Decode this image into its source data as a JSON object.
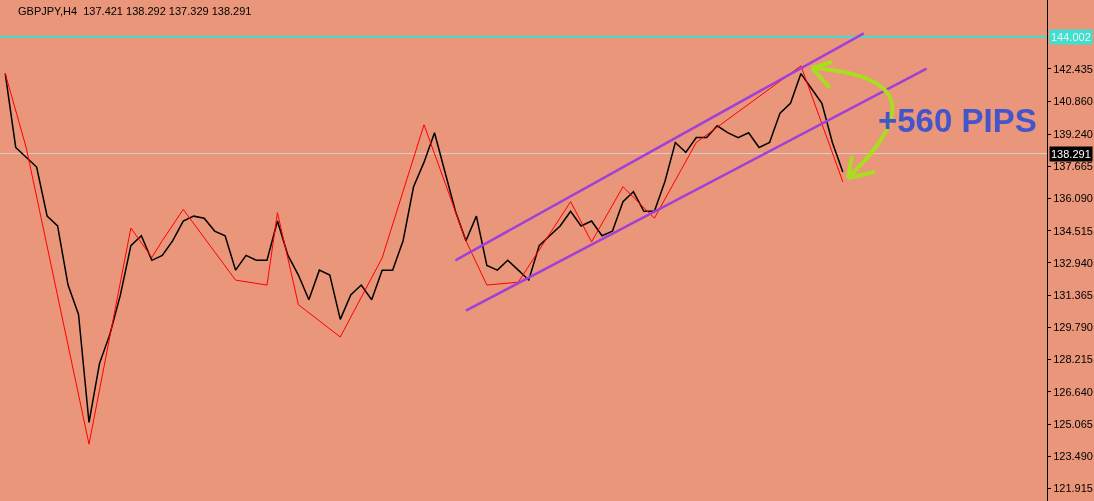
{
  "chart_data": {
    "type": "line",
    "title": "GBPJPY,H4  137.421 138.292 137.329 138.291",
    "annotations": [
      "+560 PIPS"
    ],
    "categories": [
      null,
      null,
      null,
      null,
      null,
      null,
      null,
      null,
      null,
      null,
      null,
      null,
      null,
      null,
      null,
      null,
      null,
      null,
      null,
      null,
      null,
      null,
      null,
      null,
      null,
      null,
      null,
      null,
      null,
      null,
      null,
      null,
      null,
      null,
      null,
      null,
      null,
      null,
      null,
      null,
      null,
      null,
      null,
      null,
      null,
      null,
      null,
      null,
      null,
      null,
      null,
      null,
      null,
      null,
      null,
      null,
      null,
      null,
      null,
      null,
      null,
      null,
      null,
      null,
      null,
      null,
      null,
      null,
      null,
      null,
      null,
      null,
      null,
      null,
      null,
      null,
      null,
      null,
      null,
      null,
      null,
      null,
      null,
      null,
      null,
      null,
      null,
      null,
      null,
      null,
      null,
      null,
      null,
      null,
      null,
      null,
      null,
      null,
      null,
      null
    ],
    "series": [
      {
        "color": "#000000",
        "values": [
          142.2,
          138.59,
          138.11,
          137.63,
          135.23,
          134.75,
          131.86,
          130.42,
          125.14,
          128.02,
          129.46,
          131.38,
          133.79,
          134.27,
          133.07,
          133.31,
          134.03,
          134.99,
          135.23,
          135.13,
          134.5,
          134.27,
          132.59,
          133.31,
          133.07,
          133.07,
          134.99,
          133.31,
          132.35,
          131.14,
          132.59,
          132.35,
          130.18,
          131.38,
          131.86,
          131.14,
          132.59,
          132.59,
          134.03,
          136.67,
          137.87,
          139.31,
          137.39,
          135.47,
          134.03,
          135.23,
          132.82,
          132.59,
          133.07,
          132.59,
          132.11,
          133.79,
          134.27,
          134.75,
          135.47,
          134.75,
          134.99,
          134.27,
          134.5,
          135.94,
          136.42,
          135.47,
          135.47,
          136.91,
          138.83,
          138.35,
          139.07,
          139.07,
          139.65,
          139.31,
          139.07,
          139.31,
          138.59,
          138.83,
          140.27,
          140.75,
          142.2,
          141.47,
          140.75,
          138.83,
          137.39,
          null,
          null,
          null,
          null,
          null,
          null,
          null,
          null,
          null,
          null,
          null,
          null,
          null,
          null,
          null,
          null,
          null,
          null,
          null
        ]
      },
      {
        "color": "#ff0000",
        "values": [
          142.2,
          null,
          138.59,
          null,
          null,
          null,
          null,
          null,
          124.08,
          null,
          null,
          null,
          134.65,
          null,
          133.21,
          134.03,
          null,
          135.56,
          null,
          null,
          null,
          null,
          132.1,
          null,
          null,
          131.86,
          135.4,
          null,
          130.9,
          null,
          null,
          null,
          129.32,
          null,
          null,
          null,
          133.19,
          null,
          null,
          null,
          139.7,
          null,
          null,
          null,
          134.03,
          null,
          131.86,
          null,
          null,
          132.0,
          null,
          null,
          null,
          null,
          135.94,
          null,
          133.97,
          null,
          null,
          136.67,
          null,
          null,
          135.13,
          null,
          null,
          null,
          138.83,
          null,
          null,
          null,
          null,
          null,
          null,
          null,
          null,
          null,
          142.58,
          null,
          null,
          null,
          136.91,
          null,
          null,
          null,
          null,
          null,
          null,
          null,
          null,
          null,
          null,
          null,
          null,
          null,
          null,
          null,
          null,
          null,
          null,
          null
        ]
      },
      {
        "color": "#a040d8",
        "values": [
          null,
          null,
          null,
          null,
          null,
          null,
          null,
          null,
          null,
          null,
          null,
          null,
          null,
          null,
          null,
          null,
          null,
          null,
          null,
          null,
          null,
          null,
          null,
          null,
          null,
          null,
          null,
          null,
          null,
          null,
          null,
          null,
          null,
          null,
          null,
          null,
          null,
          null,
          null,
          null,
          null,
          null,
          null,
          133.07,
          null,
          null,
          null,
          null,
          null,
          null,
          null,
          null,
          null,
          null,
          null,
          null,
          null,
          null,
          null,
          null,
          null,
          null,
          null,
          null,
          null,
          null,
          null,
          null,
          null,
          null,
          null,
          null,
          null,
          null,
          null,
          null,
          null,
          null,
          null,
          null,
          null,
          null,
          144.17,
          null,
          null,
          null,
          null,
          null,
          null,
          null,
          null,
          null,
          null,
          null,
          null,
          null,
          null,
          null,
          null,
          null
        ]
      },
      {
        "color": "#a040d8",
        "values": [
          null,
          null,
          null,
          null,
          null,
          null,
          null,
          null,
          null,
          null,
          null,
          null,
          null,
          null,
          null,
          null,
          null,
          null,
          null,
          null,
          null,
          null,
          null,
          null,
          null,
          null,
          null,
          null,
          null,
          null,
          null,
          null,
          null,
          null,
          null,
          null,
          null,
          null,
          null,
          null,
          null,
          null,
          null,
          null,
          130.61,
          null,
          null,
          null,
          null,
          null,
          null,
          null,
          null,
          null,
          null,
          null,
          null,
          null,
          null,
          null,
          null,
          null,
          null,
          null,
          null,
          null,
          null,
          null,
          null,
          null,
          null,
          null,
          null,
          null,
          null,
          null,
          null,
          null,
          null,
          null,
          null,
          null,
          null,
          null,
          null,
          null,
          null,
          null,
          142.44,
          null,
          null,
          null,
          null,
          null,
          null,
          null,
          null,
          null,
          null,
          null
        ]
      }
    ],
    "ylim": [
      121.3,
      145.8
    ],
    "yticks": [
      121.915,
      {
        "value": 123.49,
        "label": "123.490"
      },
      125.065,
      {
        "value": 126.64,
        "label": "126.640"
      },
      128.215,
      {
        "value": 129.79,
        "label": "129.790"
      },
      131.365,
      {
        "value": 132.94,
        "label": "132.940"
      },
      134.515,
      {
        "value": 136.09,
        "label": "136.090"
      },
      137.665,
      {
        "value": 139.24,
        "label": "139.240"
      },
      {
        "value": 140.86,
        "label": "140.860"
      },
      142.435
    ],
    "ref_lines": [
      {
        "axis": "y",
        "value": 144.002,
        "label": "144.002",
        "color": "#40e0d0"
      },
      {
        "axis": "y",
        "value": 138.291,
        "label": "138.291",
        "color": "#d8d0c8"
      }
    ],
    "tick_labels": "y",
    "grid": false,
    "marker": "none",
    "line_style": "solid"
  }
}
